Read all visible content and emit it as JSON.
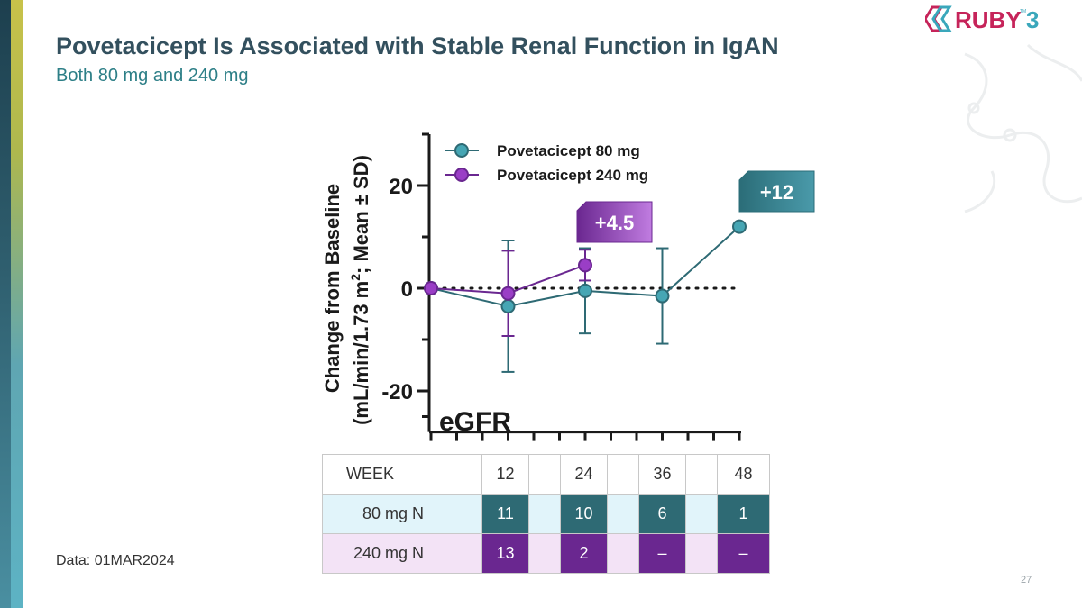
{
  "slide": {
    "title": "Povetacicept Is Associated with Stable Renal Function in IgAN",
    "subtitle": "Both 80 mg and 240 mg",
    "data_note": "Data: 01MAR2024",
    "page_number": "27",
    "logo_text": "RUBY",
    "logo_number": "3",
    "logo_tm": "TM"
  },
  "chart_data": {
    "type": "line",
    "ylabel_line1": "Change from Baseline",
    "ylabel_line2_pre": "(mL/min/1.73 m",
    "ylabel_sup": "2",
    "ylabel_line2_post": "; Mean ± SD)",
    "ylim": [
      -28,
      30
    ],
    "xlim": [
      0,
      48
    ],
    "yticks": [
      20,
      0,
      -20
    ],
    "ytick_labels": [
      "20",
      "0",
      "-20"
    ],
    "annotation": "eGFR",
    "baseline_reference": 0,
    "x": [
      0,
      12,
      24,
      36,
      48
    ],
    "series": [
      {
        "name": "Povetacicept 80 mg",
        "color": "#2e6a74",
        "fill": "#46a6b4",
        "x": [
          0,
          12,
          24,
          36,
          48
        ],
        "values": [
          0,
          -3.5,
          -0.5,
          -1.5,
          12
        ],
        "sd": [
          0,
          12.8,
          8.3,
          9.3,
          0
        ],
        "callout": "+12"
      },
      {
        "name": "Povetacicept 240 mg",
        "color": "#6a2790",
        "fill": "#9a3ec6",
        "x": [
          0,
          12,
          24
        ],
        "values": [
          0,
          -1,
          4.5
        ],
        "sd": [
          0,
          8.3,
          3
        ],
        "callout": "+4.5"
      }
    ]
  },
  "table": {
    "week_label": "WEEK",
    "weeks": [
      "12",
      "24",
      "36",
      "48"
    ],
    "row_80_label": "80 mg N",
    "row_80_values": [
      "11",
      "10",
      "6",
      "1"
    ],
    "row_240_label": "240 mg N",
    "row_240_values": [
      "13",
      "2",
      "–",
      "–"
    ]
  }
}
